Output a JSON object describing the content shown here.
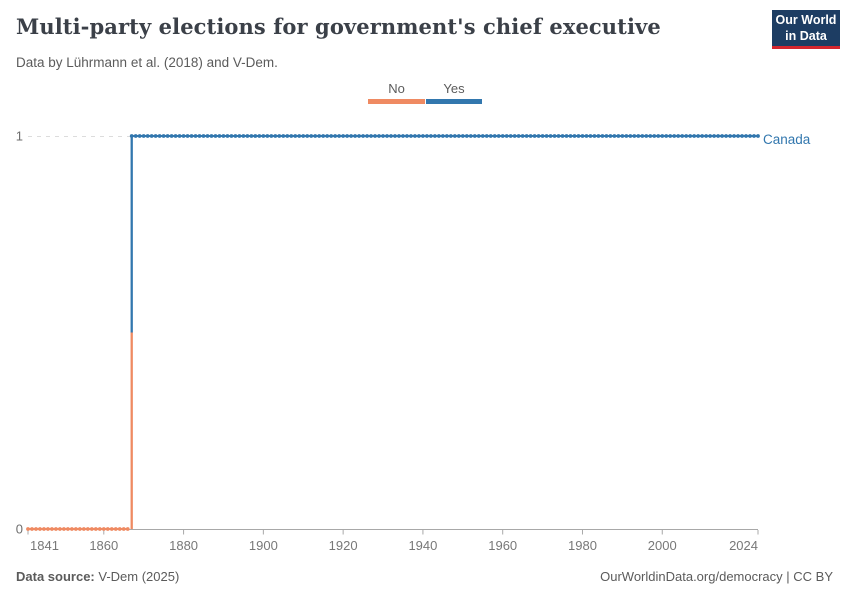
{
  "brand": {
    "logo_line1": "Our World",
    "logo_line2": "in Data",
    "navy": "#1d3d63",
    "red": "#d4262e"
  },
  "header": {
    "title": "Multi-party elections for government's chief executive",
    "subtitle": "Data by Lührmann et al. (2018) and V-Dem."
  },
  "legend": {
    "position": "top-center",
    "items": [
      {
        "label": "No",
        "color": "#ef8a62"
      },
      {
        "label": "Yes",
        "color": "#3277ae"
      }
    ]
  },
  "chart_data": {
    "type": "line",
    "title": "Multi-party elections for government's chief executive",
    "subtitle": "Data by Lührmann et al. (2018) and V-Dem.",
    "entity": "Canada",
    "x_range": [
      1841,
      2024
    ],
    "y_range": [
      0,
      1
    ],
    "x_ticks": [
      1841,
      1860,
      1880,
      1900,
      1920,
      1940,
      1960,
      1980,
      2000,
      2024
    ],
    "y_ticks": [
      0,
      1
    ],
    "grid": "dashed horizontal gridline at y=1; solid x-axis at y=0",
    "marker": "dot at every yearly observation",
    "series": [
      {
        "name": "Canada",
        "transition_year": 1867,
        "segments": [
          {
            "label": "No",
            "value": 0,
            "from_year": 1841,
            "to_year": 1866,
            "color": "#ef8a62"
          },
          {
            "label": "Yes",
            "value": 1,
            "from_year": 1867,
            "to_year": 2024,
            "color": "#3277ae"
          }
        ]
      }
    ],
    "axis_colors": {
      "gridline": "#dcdcdc",
      "axis_line": "#a8a8a8",
      "tick_label": "#787878",
      "y_label": "#6e6e6e"
    }
  },
  "footer": {
    "source_label": "Data source:",
    "source_value": " V-Dem (2025)",
    "credit": "OurWorldinData.org/democracy | CC BY"
  }
}
